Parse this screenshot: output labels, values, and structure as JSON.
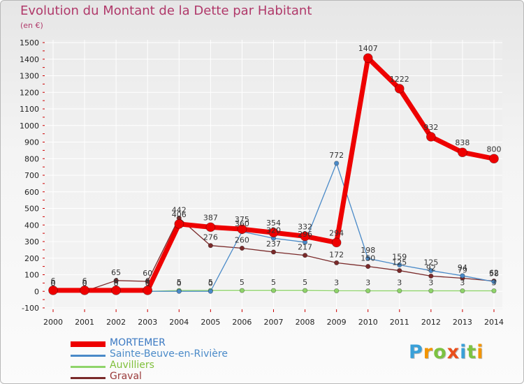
{
  "colors": {
    "title": "#b0396a",
    "axis_text": "#222222",
    "grid": "#ffffff",
    "axis_ticks": "#cc0000"
  },
  "chart_data": {
    "type": "line",
    "title": "Evolution du Montant de la Dette par Habitant",
    "subtitle": "(en €)",
    "xlabel": "",
    "ylabel": "",
    "x": [
      "2000",
      "2001",
      "2002",
      "2003",
      "2004",
      "2005",
      "2006",
      "2007",
      "2008",
      "2009",
      "2010",
      "2011",
      "2012",
      "2013",
      "2014"
    ],
    "ylim": [
      -100,
      1500
    ],
    "yticks": [
      -100,
      0,
      100,
      200,
      300,
      400,
      500,
      600,
      700,
      800,
      900,
      1000,
      1100,
      1200,
      1300,
      1400,
      1500
    ],
    "grid": true,
    "legend_position": "bottom-left",
    "series": [
      {
        "name": "Graval",
        "color": "#7a2a2a",
        "values": [
          0,
          0,
          65,
          60,
          442,
          276,
          260,
          237,
          217,
          172,
          150,
          125,
          92,
          79,
          62
        ]
      },
      {
        "name": "Auvilliers",
        "color": "#8fd46a",
        "values": [
          0,
          0,
          0,
          0,
          5,
          5,
          5,
          5,
          5,
          3,
          3,
          3,
          3,
          3,
          3
        ]
      },
      {
        "name": "Sainte-Beuve-en-Rivière",
        "color": "#4a8ac8",
        "values": [
          0,
          0,
          0,
          0,
          0,
          0,
          360,
          320,
          296,
          772,
          198,
          159,
          125,
          94,
          58
        ]
      },
      {
        "name": "MORTEMER",
        "color": "#ee0000",
        "values": [
          6,
          6,
          6,
          6,
          406,
          387,
          375,
          354,
          332,
          294,
          1407,
          1222,
          932,
          838,
          800
        ]
      }
    ],
    "legend_order": [
      "MORTEMER",
      "Sainte-Beuve-en-Rivière",
      "Auvilliers",
      "Graval"
    ]
  },
  "brand": {
    "text": "Proxiti"
  }
}
